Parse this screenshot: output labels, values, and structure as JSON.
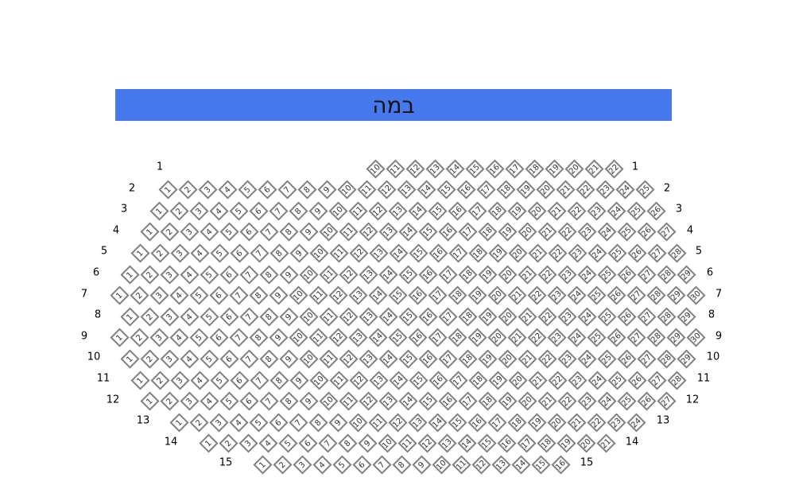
{
  "stage": {
    "label": "במה",
    "color": "#4678EE"
  },
  "seat_border_color": "#808080",
  "rows": [
    {
      "label": "1",
      "first": 10,
      "last": 22
    },
    {
      "label": "2",
      "first": 1,
      "last": 25
    },
    {
      "label": "3",
      "first": 1,
      "last": 26
    },
    {
      "label": "4",
      "first": 1,
      "last": 27
    },
    {
      "label": "5",
      "first": 1,
      "last": 28
    },
    {
      "label": "6",
      "first": 1,
      "last": 29
    },
    {
      "label": "7",
      "first": 1,
      "last": 30
    },
    {
      "label": "8",
      "first": 1,
      "last": 29
    },
    {
      "label": "9",
      "first": 1,
      "last": 30
    },
    {
      "label": "10",
      "first": 1,
      "last": 29
    },
    {
      "label": "11",
      "first": 1,
      "last": 28
    },
    {
      "label": "12",
      "first": 1,
      "last": 27
    },
    {
      "label": "13",
      "first": 1,
      "last": 24
    },
    {
      "label": "14",
      "first": 1,
      "last": 21
    },
    {
      "label": "15",
      "first": 1,
      "last": 16
    }
  ]
}
